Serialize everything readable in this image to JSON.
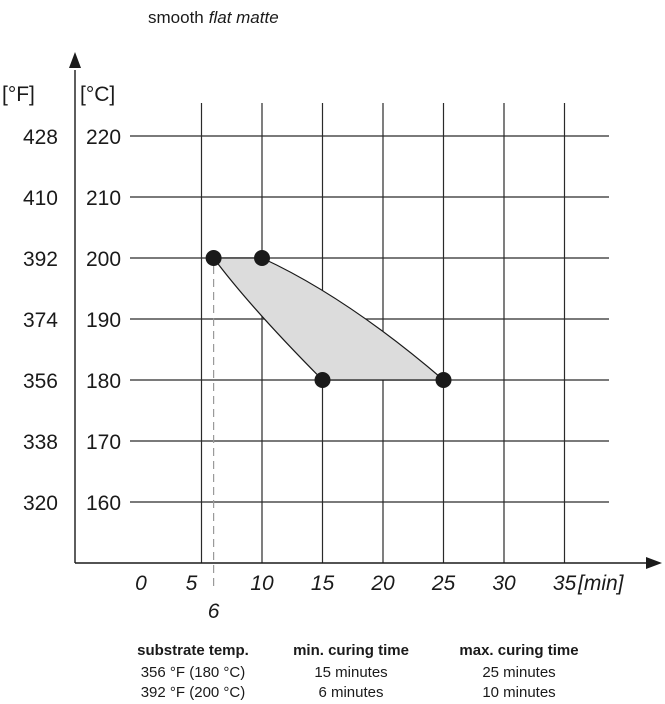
{
  "title": {
    "prefix": "smooth",
    "emphasis": "flat matte"
  },
  "chart_data": {
    "type": "area",
    "xlabel": "[min]",
    "ylabel_f": "[°F]",
    "ylabel_c": "[°C]",
    "x_ticks": [
      "0",
      "5",
      "10",
      "15",
      "20",
      "25",
      "30",
      "35"
    ],
    "x_tick_values": [
      0,
      5,
      10,
      15,
      20,
      25,
      30,
      35
    ],
    "extra_x_tick": "6",
    "extra_x_tick_value": 6,
    "y_ticks_f": [
      "428",
      "410",
      "392",
      "374",
      "356",
      "338",
      "320"
    ],
    "y_ticks_c": [
      "220",
      "210",
      "200",
      "190",
      "180",
      "170",
      "160"
    ],
    "y_tick_values_c": [
      220,
      210,
      200,
      190,
      180,
      170,
      160
    ],
    "xlim": [
      -5,
      40
    ],
    "ylim": [
      150,
      225
    ],
    "grid": true,
    "curing_window": {
      "points": [
        {
          "x": 6,
          "y": 200
        },
        {
          "x": 10,
          "y": 200
        },
        {
          "x": 25,
          "y": 180
        },
        {
          "x": 15,
          "y": 180
        }
      ]
    }
  },
  "table": {
    "headers": [
      "substrate temp.",
      "min. curing time",
      "max. curing time"
    ],
    "rows": [
      [
        "356 °F (180 °C)",
        "15 minutes",
        "25 minutes"
      ],
      [
        "392 °F (200 °C)",
        "6 minutes",
        "10 minutes"
      ]
    ]
  }
}
